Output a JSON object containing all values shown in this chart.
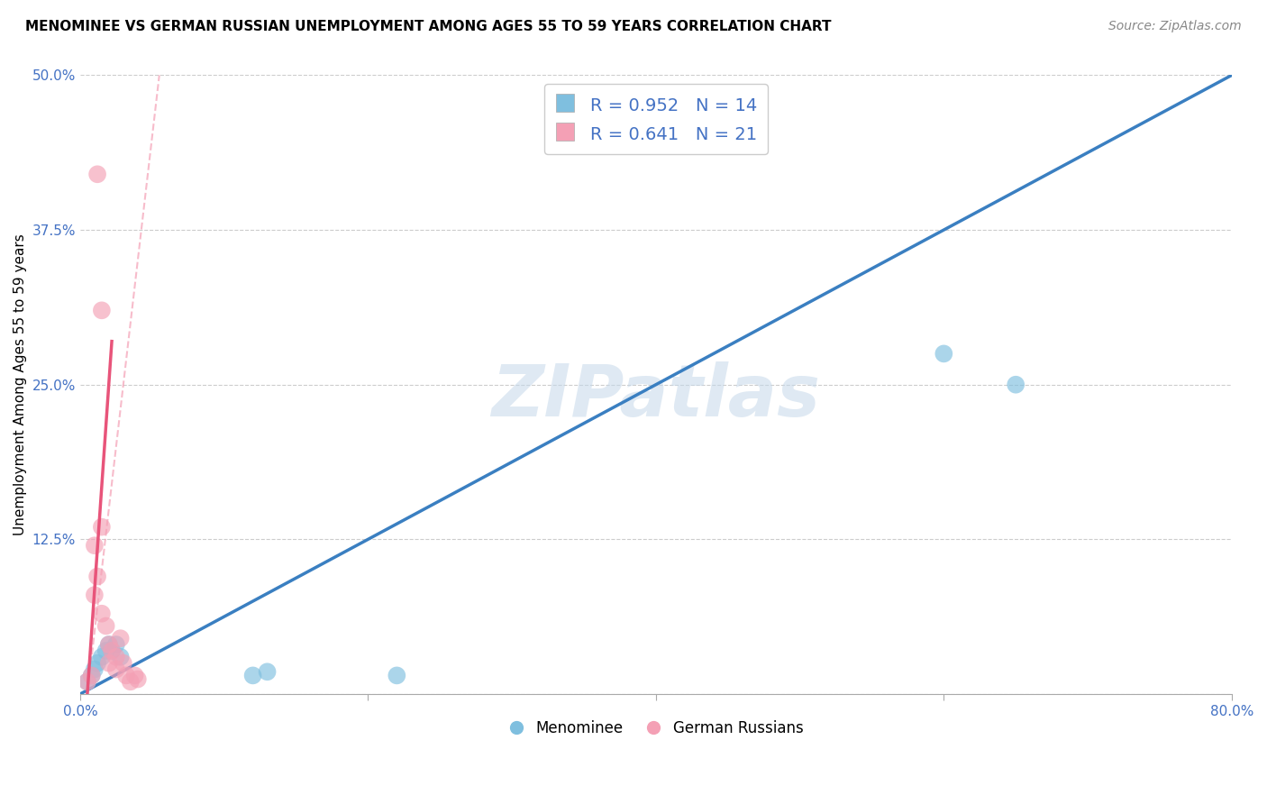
{
  "title": "MENOMINEE VS GERMAN RUSSIAN UNEMPLOYMENT AMONG AGES 55 TO 59 YEARS CORRELATION CHART",
  "source": "Source: ZipAtlas.com",
  "ylabel": "Unemployment Among Ages 55 to 59 years",
  "xlim": [
    0.0,
    0.8
  ],
  "ylim": [
    0.0,
    0.5
  ],
  "xticks": [
    0.0,
    0.2,
    0.4,
    0.6,
    0.8
  ],
  "xticklabels": [
    "0.0%",
    "",
    "",
    "",
    "80.0%"
  ],
  "yticks": [
    0.0,
    0.125,
    0.25,
    0.375,
    0.5
  ],
  "yticklabels": [
    "",
    "12.5%",
    "25.0%",
    "37.5%",
    "50.0%"
  ],
  "watermark": "ZIPatlas",
  "legend_label1": "Menominee",
  "legend_label2": "German Russians",
  "blue_color": "#7fbfdf",
  "pink_color": "#f4a0b5",
  "blue_line_color": "#3a7fc1",
  "pink_line_color": "#e8547a",
  "pink_dashed_color": "#f4a0b5",
  "blue_scatter_x": [
    0.005,
    0.008,
    0.01,
    0.012,
    0.015,
    0.018,
    0.02,
    0.022,
    0.025,
    0.028,
    0.12,
    0.13,
    0.22,
    0.6,
    0.65
  ],
  "blue_scatter_y": [
    0.01,
    0.015,
    0.02,
    0.025,
    0.03,
    0.035,
    0.04,
    0.035,
    0.04,
    0.03,
    0.015,
    0.018,
    0.015,
    0.275,
    0.25
  ],
  "pink_scatter_x": [
    0.005,
    0.008,
    0.01,
    0.01,
    0.012,
    0.015,
    0.015,
    0.018,
    0.02,
    0.02,
    0.022,
    0.025,
    0.025,
    0.028,
    0.03,
    0.032,
    0.035,
    0.038,
    0.04,
    0.012,
    0.015
  ],
  "pink_scatter_y": [
    0.01,
    0.015,
    0.12,
    0.08,
    0.095,
    0.135,
    0.065,
    0.055,
    0.04,
    0.025,
    0.035,
    0.03,
    0.02,
    0.045,
    0.025,
    0.015,
    0.01,
    0.015,
    0.012,
    0.42,
    0.31
  ],
  "blue_line_x": [
    0.0,
    0.8
  ],
  "blue_line_y": [
    0.0,
    0.5
  ],
  "pink_solid_line_x": [
    0.005,
    0.022
  ],
  "pink_solid_line_y": [
    0.0,
    0.285
  ],
  "pink_dashed_line_x": [
    0.005,
    0.055
  ],
  "pink_dashed_line_y": [
    0.0,
    0.5
  ],
  "grid_color": "#cccccc",
  "background_color": "#ffffff",
  "title_fontsize": 11,
  "axis_label_fontsize": 11,
  "tick_fontsize": 11,
  "legend_fontsize": 13,
  "source_fontsize": 10
}
